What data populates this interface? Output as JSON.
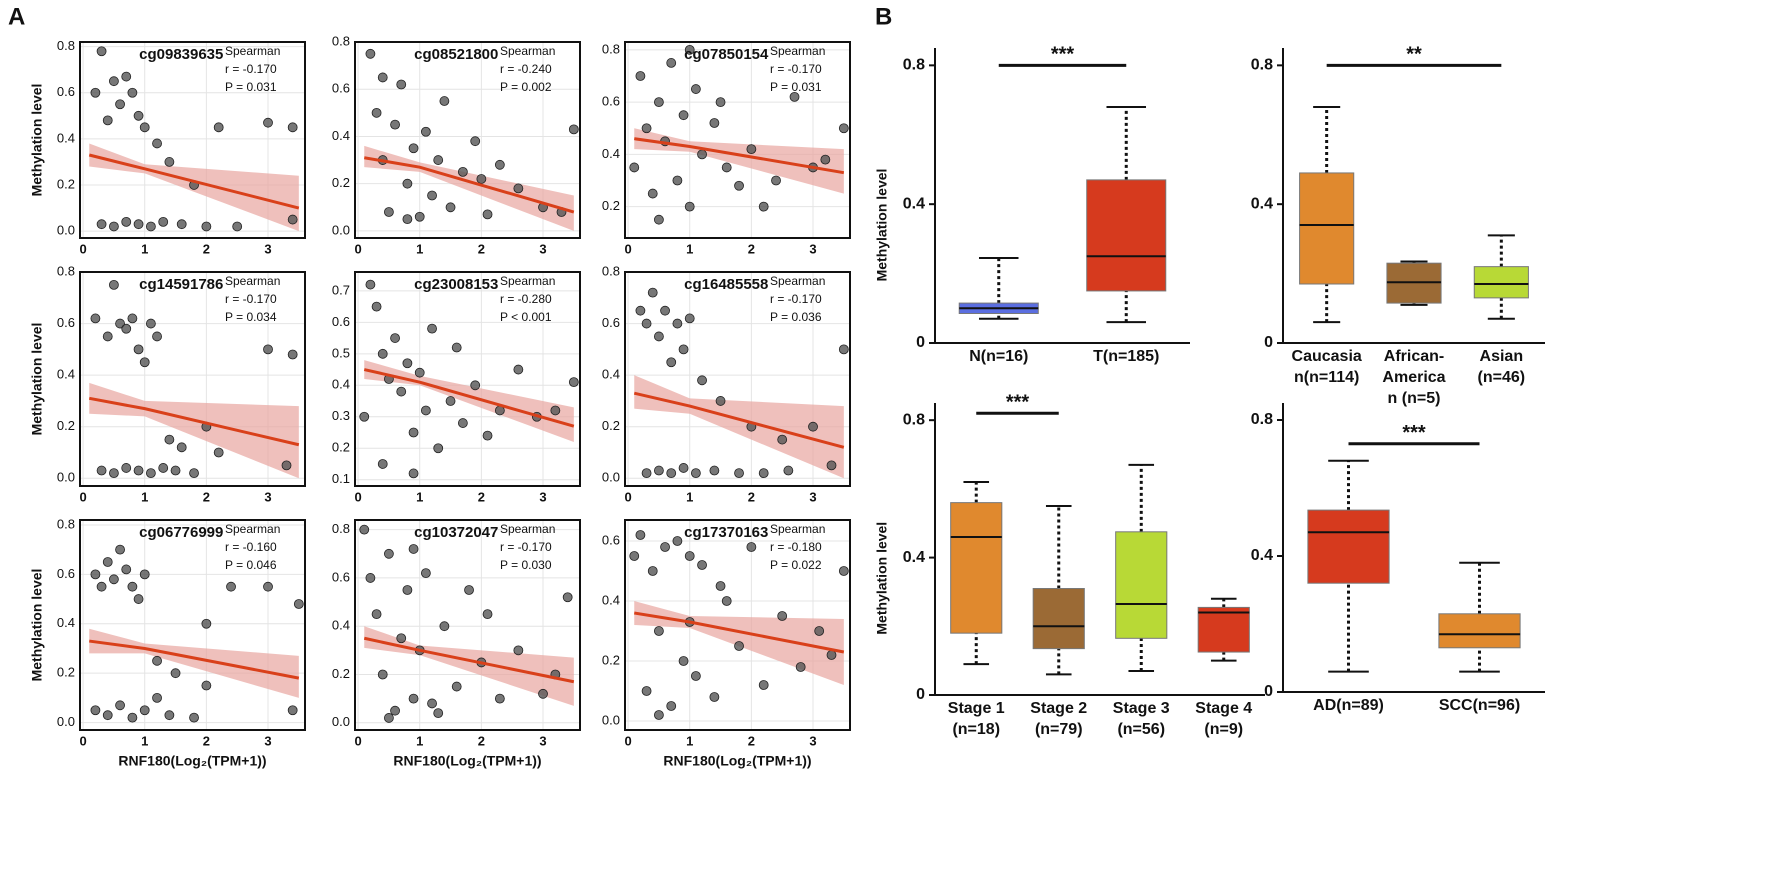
{
  "labels": {
    "a": "A",
    "b": "B"
  },
  "chart_data": [
    {
      "type": "scatter",
      "title": "cg09839635",
      "annotations": [
        "Spearman",
        "r = -0.170",
        "P = 0.031"
      ],
      "ylabel": "Methylation level",
      "color": "#555555",
      "fit_color": "#d9401a",
      "band_color": "#e8a5a0",
      "x": [
        0.2,
        0.3,
        0.4,
        0.5,
        0.6,
        0.7,
        0.8,
        0.9,
        1.0,
        1.2,
        1.4,
        1.8,
        2.2,
        3.0,
        3.4,
        0.3,
        0.5,
        0.7,
        0.9,
        1.1,
        1.3,
        1.6,
        2.0,
        2.5,
        3.4
      ],
      "y": [
        0.6,
        0.78,
        0.48,
        0.65,
        0.55,
        0.67,
        0.6,
        0.5,
        0.45,
        0.38,
        0.3,
        0.2,
        0.45,
        0.47,
        0.45,
        0.03,
        0.02,
        0.04,
        0.03,
        0.02,
        0.04,
        0.03,
        0.02,
        0.02,
        0.05
      ],
      "fit": {
        "x": [
          0.1,
          1,
          3.5
        ],
        "y": [
          0.33,
          0.27,
          0.1
        ],
        "lower": [
          0.28,
          0.25,
          0.0
        ],
        "upper": [
          0.38,
          0.29,
          0.24
        ]
      },
      "xlim": [
        -0.05,
        3.6
      ],
      "ylim": [
        -0.03,
        0.82
      ],
      "xticks": [
        0,
        1,
        2,
        3
      ],
      "yticks": [
        {
          "value": 0,
          "label": "0.0"
        },
        0.2,
        0.4,
        0.6,
        0.8
      ]
    },
    {
      "type": "scatter",
      "title": "cg08521800",
      "annotations": [
        "Spearman",
        "r = -0.240",
        "P = 0.002"
      ],
      "color": "#555555",
      "fit_color": "#d9401a",
      "band_color": "#e8a5a0",
      "x": [
        0.2,
        0.3,
        0.4,
        0.5,
        0.6,
        0.7,
        0.8,
        0.9,
        1.0,
        1.1,
        1.2,
        1.3,
        1.5,
        1.7,
        1.9,
        2.1,
        2.3,
        2.6,
        3.0,
        3.3,
        3.5,
        0.4,
        0.8,
        1.4,
        2.0
      ],
      "y": [
        0.75,
        0.5,
        0.3,
        0.08,
        0.45,
        0.62,
        0.2,
        0.35,
        0.06,
        0.42,
        0.15,
        0.3,
        0.1,
        0.25,
        0.38,
        0.07,
        0.28,
        0.18,
        0.1,
        0.08,
        0.43,
        0.65,
        0.05,
        0.55,
        0.22
      ],
      "fit": {
        "x": [
          0.1,
          1,
          3.5
        ],
        "y": [
          0.31,
          0.27,
          0.08
        ],
        "lower": [
          0.27,
          0.25,
          0.0
        ],
        "upper": [
          0.36,
          0.29,
          0.15
        ]
      },
      "xlim": [
        -0.05,
        3.6
      ],
      "ylim": [
        -0.03,
        0.8
      ],
      "xticks": [
        0,
        1,
        2,
        3
      ],
      "yticks": [
        {
          "value": 0,
          "label": "0.0"
        },
        0.2,
        0.4,
        0.6,
        0.8
      ]
    },
    {
      "type": "scatter",
      "title": "cg07850154",
      "annotations": [
        "Spearman",
        "r = -0.170",
        "P = 0.031"
      ],
      "color": "#555555",
      "fit_color": "#d9401a",
      "band_color": "#e8a5a0",
      "x": [
        0.1,
        0.2,
        0.3,
        0.4,
        0.5,
        0.6,
        0.7,
        0.8,
        0.9,
        1.0,
        1.1,
        1.2,
        1.4,
        1.6,
        1.8,
        2.0,
        2.2,
        2.4,
        2.7,
        3.0,
        3.2,
        3.5,
        0.5,
        1.0,
        1.5
      ],
      "y": [
        0.35,
        0.7,
        0.5,
        0.25,
        0.6,
        0.45,
        0.75,
        0.3,
        0.55,
        0.2,
        0.65,
        0.4,
        0.52,
        0.35,
        0.28,
        0.42,
        0.2,
        0.3,
        0.62,
        0.35,
        0.38,
        0.5,
        0.15,
        0.8,
        0.6
      ],
      "fit": {
        "x": [
          0.1,
          1,
          3.5
        ],
        "y": [
          0.46,
          0.43,
          0.33
        ],
        "lower": [
          0.42,
          0.41,
          0.25
        ],
        "upper": [
          0.5,
          0.45,
          0.42
        ]
      },
      "xlim": [
        -0.05,
        3.6
      ],
      "ylim": [
        0.08,
        0.83
      ],
      "xticks": [
        0,
        1,
        2,
        3
      ],
      "yticks": [
        0.2,
        0.4,
        0.6,
        0.8
      ]
    },
    {
      "type": "scatter",
      "title": "cg14591786",
      "annotations": [
        "Spearman",
        "r = -0.170",
        "P = 0.034"
      ],
      "ylabel": "Methylation level",
      "color": "#555555",
      "fit_color": "#d9401a",
      "band_color": "#e8a5a0",
      "x": [
        0.2,
        0.4,
        0.5,
        0.6,
        0.7,
        0.8,
        0.9,
        1.0,
        1.1,
        1.2,
        1.4,
        2.0,
        3.0,
        3.4,
        0.3,
        0.5,
        0.7,
        0.9,
        1.1,
        1.3,
        1.5,
        1.8,
        2.2,
        3.3,
        1.6
      ],
      "y": [
        0.62,
        0.55,
        0.75,
        0.6,
        0.58,
        0.62,
        0.5,
        0.45,
        0.6,
        0.55,
        0.15,
        0.2,
        0.5,
        0.48,
        0.03,
        0.02,
        0.04,
        0.03,
        0.02,
        0.04,
        0.03,
        0.02,
        0.1,
        0.05,
        0.12
      ],
      "fit": {
        "x": [
          0.1,
          1,
          3.5
        ],
        "y": [
          0.31,
          0.27,
          0.13
        ],
        "lower": [
          0.25,
          0.24,
          0.0
        ],
        "upper": [
          0.37,
          0.3,
          0.28
        ]
      },
      "xlim": [
        -0.05,
        3.6
      ],
      "ylim": [
        -0.03,
        0.8
      ],
      "xticks": [
        0,
        1,
        2,
        3
      ],
      "yticks": [
        {
          "value": 0,
          "label": "0.0"
        },
        0.2,
        0.4,
        0.6,
        0.8
      ]
    },
    {
      "type": "scatter",
      "title": "cg23008153",
      "annotations": [
        "Spearman",
        "r = -0.280",
        "P < 0.001"
      ],
      "color": "#555555",
      "fit_color": "#d9401a",
      "band_color": "#e8a5a0",
      "x": [
        0.1,
        0.2,
        0.3,
        0.4,
        0.5,
        0.6,
        0.7,
        0.8,
        0.9,
        1.0,
        1.1,
        1.2,
        1.3,
        1.5,
        1.7,
        1.9,
        2.1,
        2.3,
        2.6,
        2.9,
        3.2,
        3.5,
        0.4,
        0.9,
        1.6
      ],
      "y": [
        0.3,
        0.72,
        0.65,
        0.5,
        0.42,
        0.55,
        0.38,
        0.47,
        0.25,
        0.44,
        0.32,
        0.58,
        0.2,
        0.35,
        0.28,
        0.4,
        0.24,
        0.32,
        0.45,
        0.3,
        0.32,
        0.41,
        0.15,
        0.12,
        0.52
      ],
      "fit": {
        "x": [
          0.1,
          1,
          3.5
        ],
        "y": [
          0.45,
          0.41,
          0.27
        ],
        "lower": [
          0.42,
          0.4,
          0.22
        ],
        "upper": [
          0.48,
          0.43,
          0.33
        ]
      },
      "xlim": [
        -0.05,
        3.6
      ],
      "ylim": [
        0.08,
        0.76
      ],
      "xticks": [
        0,
        1,
        2,
        3
      ],
      "yticks": [
        0.1,
        0.2,
        0.3,
        0.4,
        0.5,
        0.6,
        0.7
      ]
    },
    {
      "type": "scatter",
      "title": "cg16485558",
      "annotations": [
        "Spearman",
        "r = -0.170",
        "P = 0.036"
      ],
      "color": "#555555",
      "fit_color": "#d9401a",
      "band_color": "#e8a5a0",
      "x": [
        0.2,
        0.3,
        0.4,
        0.5,
        0.6,
        0.7,
        0.8,
        0.9,
        1.0,
        1.2,
        1.5,
        2.0,
        2.5,
        3.0,
        3.5,
        0.3,
        0.5,
        0.7,
        0.9,
        1.1,
        1.4,
        1.8,
        2.2,
        2.6,
        3.3
      ],
      "y": [
        0.65,
        0.6,
        0.72,
        0.55,
        0.65,
        0.45,
        0.6,
        0.5,
        0.62,
        0.38,
        0.3,
        0.2,
        0.15,
        0.2,
        0.5,
        0.02,
        0.03,
        0.02,
        0.04,
        0.02,
        0.03,
        0.02,
        0.02,
        0.03,
        0.05
      ],
      "fit": {
        "x": [
          0.1,
          1,
          3.5
        ],
        "y": [
          0.33,
          0.28,
          0.12
        ],
        "lower": [
          0.27,
          0.25,
          0.0
        ],
        "upper": [
          0.4,
          0.31,
          0.28
        ]
      },
      "xlim": [
        -0.05,
        3.6
      ],
      "ylim": [
        -0.03,
        0.8
      ],
      "xticks": [
        0,
        1,
        2,
        3
      ],
      "yticks": [
        {
          "value": 0,
          "label": "0.0"
        },
        0.2,
        0.4,
        0.6,
        0.8
      ]
    },
    {
      "type": "scatter",
      "title": "cg06776999",
      "annotations": [
        "Spearman",
        "r = -0.160",
        "P = 0.046"
      ],
      "ylabel": "Methylation level",
      "xlabel": "RNF180(Log₂(TPM+1))",
      "color": "#555555",
      "fit_color": "#d9401a",
      "band_color": "#e8a5a0",
      "x": [
        0.2,
        0.3,
        0.4,
        0.5,
        0.6,
        0.7,
        0.8,
        0.9,
        1.0,
        1.2,
        1.5,
        2.0,
        2.4,
        3.0,
        3.5,
        0.2,
        0.4,
        0.6,
        0.8,
        1.0,
        1.2,
        1.4,
        1.8,
        2.0,
        3.4
      ],
      "y": [
        0.6,
        0.55,
        0.65,
        0.58,
        0.7,
        0.62,
        0.55,
        0.5,
        0.6,
        0.25,
        0.2,
        0.4,
        0.55,
        0.55,
        0.48,
        0.05,
        0.03,
        0.07,
        0.02,
        0.05,
        0.1,
        0.03,
        0.02,
        0.15,
        0.05
      ],
      "fit": {
        "x": [
          0.1,
          1,
          3.5
        ],
        "y": [
          0.33,
          0.3,
          0.18
        ],
        "lower": [
          0.28,
          0.28,
          0.1
        ],
        "upper": [
          0.38,
          0.32,
          0.27
        ]
      },
      "xlim": [
        -0.05,
        3.6
      ],
      "ylim": [
        -0.03,
        0.82
      ],
      "xticks": [
        0,
        1,
        2,
        3
      ],
      "yticks": [
        {
          "value": 0,
          "label": "0.0"
        },
        0.2,
        0.4,
        0.6,
        0.8
      ]
    },
    {
      "type": "scatter",
      "title": "cg10372047",
      "annotations": [
        "Spearman",
        "r = -0.170",
        "P = 0.030"
      ],
      "xlabel": "RNF180(Log₂(TPM+1))",
      "color": "#555555",
      "fit_color": "#d9401a",
      "band_color": "#e8a5a0",
      "x": [
        0.1,
        0.2,
        0.3,
        0.4,
        0.5,
        0.6,
        0.7,
        0.8,
        0.9,
        1.0,
        1.1,
        1.2,
        1.4,
        1.6,
        1.8,
        2.0,
        2.3,
        2.6,
        3.0,
        3.2,
        3.4,
        0.5,
        0.9,
        1.3,
        2.1
      ],
      "y": [
        0.8,
        0.6,
        0.45,
        0.2,
        0.7,
        0.05,
        0.35,
        0.55,
        0.1,
        0.3,
        0.62,
        0.08,
        0.4,
        0.15,
        0.55,
        0.25,
        0.1,
        0.3,
        0.12,
        0.2,
        0.52,
        0.02,
        0.72,
        0.04,
        0.45
      ],
      "fit": {
        "x": [
          0.1,
          1,
          3.5
        ],
        "y": [
          0.35,
          0.3,
          0.17
        ],
        "lower": [
          0.31,
          0.28,
          0.07
        ],
        "upper": [
          0.4,
          0.32,
          0.27
        ]
      },
      "xlim": [
        -0.05,
        3.6
      ],
      "ylim": [
        -0.03,
        0.84
      ],
      "xticks": [
        0,
        1,
        2,
        3
      ],
      "yticks": [
        {
          "value": 0,
          "label": "0.0"
        },
        0.2,
        0.4,
        0.6,
        0.8
      ]
    },
    {
      "type": "scatter",
      "title": "cg17370163",
      "annotations": [
        "Spearman",
        "r = -0.180",
        "P = 0.022"
      ],
      "xlabel": "RNF180(Log₂(TPM+1))",
      "color": "#555555",
      "fit_color": "#d9401a",
      "band_color": "#e8a5a0",
      "x": [
        0.1,
        0.2,
        0.3,
        0.4,
        0.5,
        0.6,
        0.7,
        0.8,
        0.9,
        1.0,
        1.1,
        1.2,
        1.4,
        1.6,
        1.8,
        2.0,
        2.2,
        2.5,
        2.8,
        3.1,
        3.3,
        3.5,
        0.5,
        1.0,
        1.5
      ],
      "y": [
        0.55,
        0.62,
        0.1,
        0.5,
        0.3,
        0.58,
        0.05,
        0.6,
        0.2,
        0.55,
        0.15,
        0.52,
        0.08,
        0.4,
        0.25,
        0.58,
        0.12,
        0.35,
        0.18,
        0.3,
        0.22,
        0.5,
        0.02,
        0.33,
        0.45
      ],
      "fit": {
        "x": [
          0.1,
          1,
          3.5
        ],
        "y": [
          0.36,
          0.33,
          0.23
        ],
        "lower": [
          0.32,
          0.31,
          0.12
        ],
        "upper": [
          0.4,
          0.35,
          0.34
        ]
      },
      "xlim": [
        -0.05,
        3.6
      ],
      "ylim": [
        -0.03,
        0.67
      ],
      "xticks": [
        0,
        1,
        2,
        3
      ],
      "yticks": [
        {
          "value": 0,
          "label": "0.0"
        },
        0.2,
        0.4,
        0.6
      ]
    },
    {
      "type": "box",
      "ylabel": "Methylation level",
      "categories": [
        [
          "N(n=16)"
        ],
        [
          "T(n=185)"
        ]
      ],
      "boxes": [
        {
          "min": 0.07,
          "q1": 0.085,
          "median": 0.1,
          "q3": 0.115,
          "max": 0.245,
          "color": "#5b6ee0"
        },
        {
          "min": 0.06,
          "q1": 0.15,
          "median": 0.25,
          "q3": 0.47,
          "max": 0.68,
          "color": "#d63a1e"
        }
      ],
      "significance": {
        "label": "***",
        "between": [
          0,
          1
        ],
        "y": 0.8
      },
      "ylim": [
        0,
        0.85
      ],
      "yticks": [
        0,
        0.4,
        0.8
      ]
    },
    {
      "type": "box",
      "categories": [
        [
          "Caucasia",
          "n(n=114)"
        ],
        [
          "African-",
          "America",
          "n (n=5)"
        ],
        [
          "Asian",
          "(n=46)"
        ]
      ],
      "boxes": [
        {
          "min": 0.06,
          "q1": 0.17,
          "median": 0.34,
          "q3": 0.49,
          "max": 0.68,
          "color": "#e0892e"
        },
        {
          "min": 0.11,
          "q1": 0.115,
          "median": 0.175,
          "q3": 0.23,
          "max": 0.235,
          "color": "#9b6a35"
        },
        {
          "min": 0.07,
          "q1": 0.13,
          "median": 0.17,
          "q3": 0.22,
          "max": 0.31,
          "color": "#b8d936"
        }
      ],
      "significance": {
        "label": "**",
        "between": [
          0,
          2
        ],
        "y": 0.8
      },
      "ylim": [
        0,
        0.85
      ],
      "yticks": [
        0,
        0.4,
        0.8
      ]
    },
    {
      "type": "box",
      "ylabel": "Methylation level",
      "categories": [
        [
          "Stage 1",
          "(n=18)"
        ],
        [
          "Stage 2",
          "(n=79)"
        ],
        [
          "Stage 3",
          "(n=56)"
        ],
        [
          "Stage 4",
          "(n=9)"
        ]
      ],
      "boxes": [
        {
          "min": 0.09,
          "q1": 0.18,
          "median": 0.46,
          "q3": 0.56,
          "max": 0.62,
          "color": "#e0892e"
        },
        {
          "min": 0.06,
          "q1": 0.135,
          "median": 0.2,
          "q3": 0.31,
          "max": 0.55,
          "color": "#9b6a35"
        },
        {
          "min": 0.07,
          "q1": 0.165,
          "median": 0.265,
          "q3": 0.475,
          "max": 0.67,
          "color": "#b8d936"
        },
        {
          "min": 0.1,
          "q1": 0.125,
          "median": 0.24,
          "q3": 0.255,
          "max": 0.28,
          "color": "#d63a1e"
        }
      ],
      "significance": {
        "label": "***",
        "between": [
          0,
          1
        ],
        "y": 0.82
      },
      "ylim": [
        0,
        0.85
      ],
      "yticks": [
        0,
        0.4,
        0.8
      ]
    },
    {
      "type": "box",
      "categories": [
        [
          "AD(n=89)"
        ],
        [
          "SCC(n=96)"
        ]
      ],
      "boxes": [
        {
          "min": 0.06,
          "q1": 0.32,
          "median": 0.47,
          "q3": 0.535,
          "max": 0.68,
          "color": "#d63a1e"
        },
        {
          "min": 0.06,
          "q1": 0.13,
          "median": 0.17,
          "q3": 0.23,
          "max": 0.38,
          "color": "#e0892e"
        }
      ],
      "significance": {
        "label": "***",
        "between": [
          0,
          1
        ],
        "y": 0.73
      },
      "ylim": [
        0,
        0.85
      ],
      "yticks": [
        0,
        0.4,
        0.8
      ]
    }
  ]
}
